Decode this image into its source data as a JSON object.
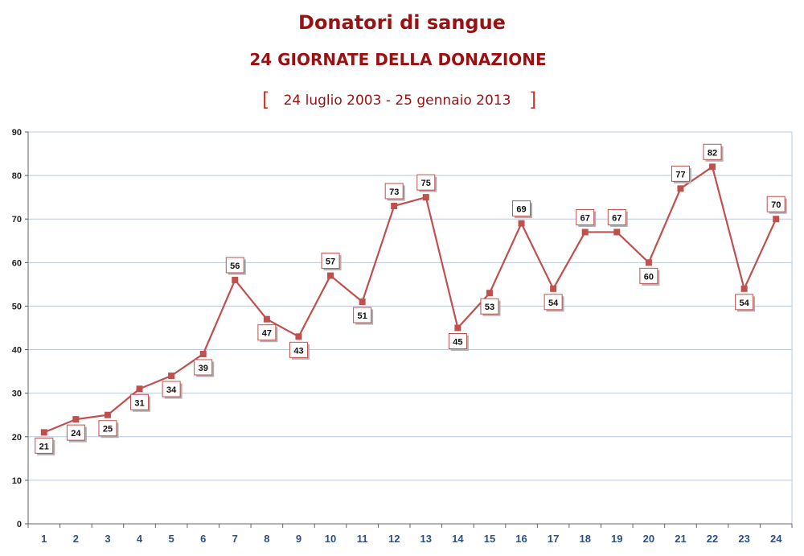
{
  "chart_data": {
    "type": "line",
    "title": "Donatori di sangue",
    "subtitle": "24 GIORNATE DELLA DONAZIONE",
    "period": "24 luglio 2003 - 25 gennaio 2013",
    "bracket_open": "[",
    "bracket_close": "]",
    "categories": [
      "1",
      "2",
      "3",
      "4",
      "5",
      "6",
      "7",
      "8",
      "9",
      "10",
      "11",
      "12",
      "13",
      "14",
      "15",
      "16",
      "17",
      "18",
      "19",
      "20",
      "21",
      "22",
      "23",
      "24"
    ],
    "series": [
      {
        "values": [
          21,
          24,
          25,
          31,
          34,
          39,
          56,
          47,
          43,
          57,
          51,
          73,
          75,
          45,
          53,
          69,
          54,
          67,
          67,
          60,
          77,
          82,
          54,
          70
        ]
      }
    ],
    "ylim": [
      0,
      90
    ],
    "yticks": [
      0,
      10,
      20,
      30,
      40,
      50,
      60,
      70,
      80,
      90
    ],
    "label_positions": [
      "below",
      "below",
      "below",
      "below",
      "below",
      "below",
      "above",
      "below",
      "below",
      "above",
      "below",
      "above",
      "above",
      "below",
      "below",
      "above",
      "below",
      "above",
      "above",
      "below",
      "above",
      "above",
      "below",
      "above"
    ],
    "grid": true,
    "colors": {
      "line": "#c0504d",
      "marker": "#c0504d",
      "title": "#9b1111",
      "grid": "#b9c9e0",
      "xtick": "#2a4f8f"
    }
  }
}
